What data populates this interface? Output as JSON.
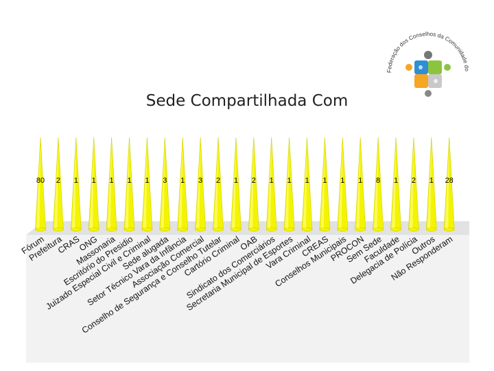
{
  "title": "Sede Compartilhada Com",
  "logo": {
    "text": "Federação dos Conselhos da Comunidade do Paraná",
    "icon": "puzzle-people-logo",
    "colors": [
      "#2e8fd6",
      "#8bc53f",
      "#f5a623",
      "#c9c9c9"
    ]
  },
  "colors": {
    "spike": "#f4f400",
    "spike_edge": "#cfcf00",
    "floor": "#e2e2e2",
    "plate": "#f2f2f2",
    "wall": "#ffffff"
  },
  "chart_data": {
    "type": "bar",
    "style": "3d-cone",
    "title": "Sede Compartilhada Com",
    "categories": [
      "Fórum",
      "Prefeitura",
      "CRAS",
      "ONG",
      "Massonaria",
      "Escritório do Presidio",
      "Juizado Especial Civil e Criminal",
      "Sede alugada",
      "Setor Técnico Vara da Infância",
      "Associação Comercial",
      "Conselho de Segurança e Conselho Tutelar",
      "Cartório Criminal",
      "OAB",
      "Sindicato dos Comerciários",
      "Secretaria Municipal de Esportes",
      "Vara Criminal",
      "CREAS",
      "Conselhos Municipais",
      "PROCON",
      "Sem Sede",
      "Faculdade",
      "Delegacia de Polícia",
      "Outros",
      "Não Responderam"
    ],
    "values": [
      80,
      2,
      1,
      1,
      1,
      1,
      1,
      3,
      1,
      3,
      2,
      1,
      2,
      1,
      1,
      1,
      1,
      1,
      1,
      8,
      1,
      2,
      1,
      28
    ],
    "data_labels": [
      "80",
      "2",
      "1",
      "1",
      "1",
      "1",
      "1",
      "3",
      "1",
      "3",
      "2",
      "1",
      "2",
      "1",
      "1",
      "1",
      "1",
      "1",
      "1",
      "8",
      "1",
      "2",
      "1",
      "28"
    ],
    "grid": false,
    "legend": "none"
  }
}
